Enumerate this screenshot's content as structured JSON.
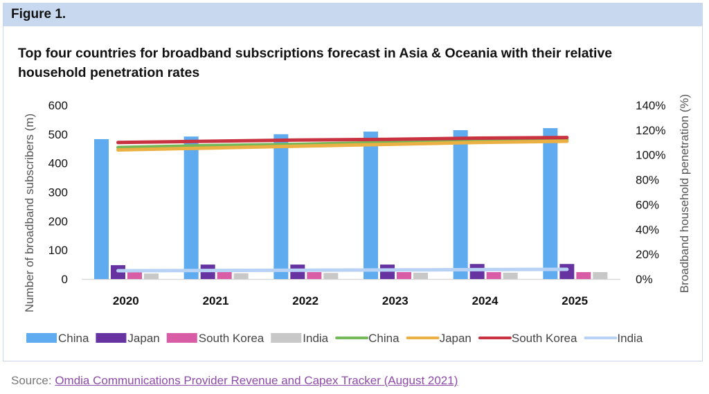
{
  "figure": {
    "label": "Figure 1.",
    "title": "Top four countries for broadband subscriptions forecast in Asia & Oceania with their relative household penetration rates"
  },
  "source": {
    "prefix": "Source: ",
    "link_text": "Omdia Communications Provider Revenue and Capex Tracker (August 2021)"
  },
  "colors": {
    "header_band": "#c8d8ee",
    "frame_border": "#c9d7ee",
    "link": "#8d4aa8"
  },
  "chart_data": {
    "type": "bar",
    "combo": "bar + line (secondary axis)",
    "title": "Top four countries for broadband subscriptions forecast in Asia & Oceania with their relative household penetration rates",
    "categories": [
      "2020",
      "2021",
      "2022",
      "2023",
      "2024",
      "2025"
    ],
    "ylabel": "Number of broadband subscribers (m)",
    "ylim": [
      0,
      600
    ],
    "yticks": [
      0,
      100,
      200,
      300,
      400,
      500,
      600
    ],
    "ytick_labels": [
      "0",
      "100",
      "200",
      "300",
      "400",
      "500",
      "600"
    ],
    "y2label": "Broadband household penetration (%)",
    "y2lim": [
      0,
      140
    ],
    "y2ticks": [
      0,
      20,
      40,
      60,
      80,
      100,
      120,
      140
    ],
    "y2tick_labels": [
      "0%",
      "20%",
      "40%",
      "60%",
      "80%",
      "100%",
      "120%",
      "140%"
    ],
    "grid": false,
    "legend_position": "bottom",
    "bar_series": [
      {
        "name": "China",
        "color": "#5fabf0",
        "values": [
          483,
          492,
          500,
          509,
          514,
          521
        ]
      },
      {
        "name": "Japan",
        "color": "#6633a0",
        "values": [
          48,
          50,
          50,
          50,
          52,
          52
        ]
      },
      {
        "name": "South Korea",
        "color": "#d95ca6",
        "values": [
          24,
          24,
          24,
          24,
          24,
          24
        ]
      },
      {
        "name": "India",
        "color": "#c8c8c8",
        "values": [
          19,
          20,
          21,
          22,
          22,
          24
        ]
      }
    ],
    "line_series": [
      {
        "name": "China",
        "color": "#74b857",
        "values": [
          106,
          107.5,
          108.5,
          110,
          111,
          112
        ]
      },
      {
        "name": "Japan",
        "color": "#eab043",
        "values": [
          104,
          105.5,
          107,
          108.5,
          110,
          111
        ]
      },
      {
        "name": "South Korea",
        "color": "#c93341",
        "values": [
          110,
          111,
          112,
          112.5,
          113.5,
          114
        ]
      },
      {
        "name": "India",
        "color": "#b8d2f5",
        "values": [
          6.7,
          6.9,
          7.1,
          7.3,
          7.6,
          7.8
        ]
      }
    ]
  }
}
